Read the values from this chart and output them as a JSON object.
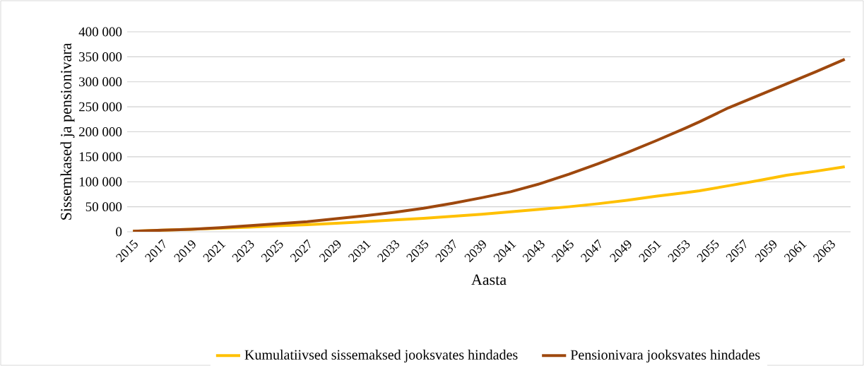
{
  "chart_data": {
    "type": "line",
    "xlabel": "Aasta",
    "ylabel": "Sissemkased ja pensionivara",
    "x": [
      2015,
      2017,
      2019,
      2021,
      2023,
      2025,
      2027,
      2029,
      2031,
      2033,
      2035,
      2037,
      2039,
      2041,
      2043,
      2045,
      2047,
      2049,
      2051,
      2053,
      2054,
      2056,
      2058,
      2060,
      2062,
      2064
    ],
    "series": [
      {
        "name": "Kumulatiivsed sissemaksed jooksvates hindades",
        "color": "#ffc000",
        "values": [
          1000,
          3000,
          5000,
          7000,
          9000,
          12000,
          14000,
          17000,
          20000,
          23500,
          27000,
          31000,
          35000,
          40000,
          45000,
          50000,
          56000,
          63000,
          71000,
          78000,
          82000,
          92000,
          102000,
          113000,
          121000,
          130000
        ]
      },
      {
        "name": "Pensionivara jooksvates hindades",
        "color": "#9e480e",
        "values": [
          1000,
          3000,
          5000,
          8000,
          12000,
          16000,
          20000,
          26000,
          32000,
          39000,
          47000,
          57000,
          68000,
          80000,
          96000,
          115000,
          136000,
          158000,
          182000,
          207000,
          220000,
          248000,
          272000,
          296000,
          320000,
          345000
        ]
      }
    ],
    "xlim": [
      2014.6,
      2064.4
    ],
    "xticks": [
      2015,
      2017,
      2019,
      2021,
      2023,
      2025,
      2027,
      2029,
      2031,
      2033,
      2035,
      2037,
      2039,
      2041,
      2043,
      2045,
      2047,
      2049,
      2051,
      2053,
      2055,
      2057,
      2059,
      2061,
      2063
    ],
    "ylim": [
      0,
      400000
    ],
    "yticks": [
      0,
      {
        "value": 50000,
        "label": "50 000"
      },
      {
        "value": 100000,
        "label": "100 000"
      },
      {
        "value": 150000,
        "label": "150 000"
      },
      {
        "value": 200000,
        "label": "200 000"
      },
      {
        "value": 250000,
        "label": "250 000"
      },
      {
        "value": 300000,
        "label": "300 000"
      },
      {
        "value": 350000,
        "label": "350 000"
      },
      {
        "value": 400000,
        "label": "400 000"
      }
    ],
    "grid": "y",
    "legend": "bottom",
    "marker": "none",
    "line_style": "solid"
  }
}
